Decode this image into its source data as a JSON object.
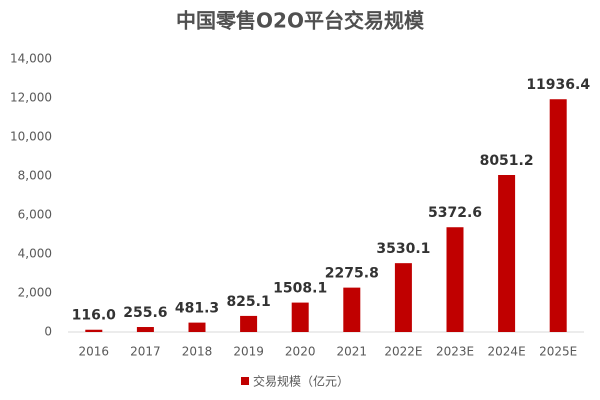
{
  "chart_data": {
    "type": "bar",
    "title": "中国零售O2O平台交易规模",
    "categories": [
      "2016",
      "2017",
      "2018",
      "2019",
      "2020",
      "2021",
      "2022E",
      "2023E",
      "2024E",
      "2025E"
    ],
    "series": [
      {
        "name": "交易规模（亿元）",
        "color": "#c00000",
        "values": [
          116.0,
          255.6,
          481.3,
          825.1,
          1508.1,
          2275.8,
          3530.1,
          5372.6,
          8051.2,
          11936.4
        ],
        "value_labels": [
          "116.0",
          "255.6",
          "481.3",
          "825.1",
          "1508.1",
          "2275.8",
          "3530.1",
          "5372.6",
          "8051.2",
          "11936.4"
        ]
      }
    ],
    "ylim": [
      0,
      14000
    ],
    "yticks": [
      0,
      {
        "value": 2000,
        "label": "2,000"
      },
      {
        "value": 4000,
        "label": "4,000"
      },
      {
        "value": 6000,
        "label": "6,000"
      },
      {
        "value": 8000,
        "label": "8,000"
      },
      {
        "value": 10000,
        "label": "10,000"
      },
      {
        "value": 12000,
        "label": "12,000"
      },
      {
        "value": 14000,
        "label": "14,000"
      }
    ],
    "grid": false,
    "legend": "bottom"
  }
}
